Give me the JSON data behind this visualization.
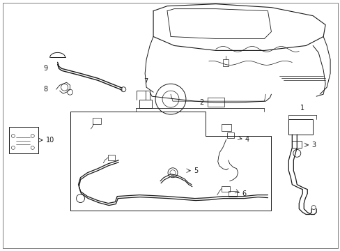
{
  "bg_color": "#ffffff",
  "line_color": "#1a1a1a",
  "fig_width": 4.89,
  "fig_height": 3.6,
  "dpi": 100,
  "label_fontsize": 7,
  "border_lw": 0.4
}
